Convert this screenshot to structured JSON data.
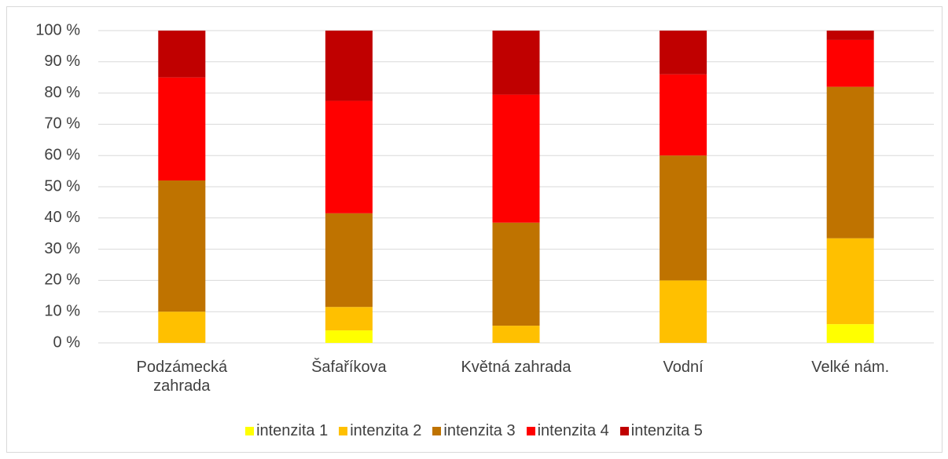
{
  "chart_data": {
    "type": "stacked_bar",
    "categories": [
      "Podzámecká zahrada",
      "Šafaříkova",
      "Květná zahrada",
      "Vodní",
      "Velké nám."
    ],
    "series": [
      {
        "name": "intenzita 1",
        "color": "#ffff00",
        "values": [
          0,
          4,
          0,
          0,
          6
        ]
      },
      {
        "name": "intenzita 2",
        "color": "#ffc000",
        "values": [
          10,
          7.5,
          5.5,
          20,
          27.5
        ]
      },
      {
        "name": "intenzita 3",
        "color": "#bf7300",
        "values": [
          42,
          30,
          33,
          40,
          48.5
        ]
      },
      {
        "name": "intenzita 4",
        "color": "#ff0000",
        "values": [
          33,
          36,
          41,
          26,
          15
        ]
      },
      {
        "name": "intenzita 5",
        "color": "#c00000",
        "values": [
          15,
          22.5,
          20.5,
          14,
          3
        ]
      }
    ],
    "ylim": [
      0,
      100
    ],
    "yticks": [
      {
        "value": 0,
        "label": "0 %"
      },
      {
        "value": 10,
        "label": "10 %"
      },
      {
        "value": 20,
        "label": "20 %"
      },
      {
        "value": 30,
        "label": "30 %"
      },
      {
        "value": 40,
        "label": "40 %"
      },
      {
        "value": 50,
        "label": "50 %"
      },
      {
        "value": 60,
        "label": "60 %"
      },
      {
        "value": 70,
        "label": "70 %"
      },
      {
        "value": 80,
        "label": "80 %"
      },
      {
        "value": 90,
        "label": "90 %"
      },
      {
        "value": 100,
        "label": "100 %"
      }
    ],
    "grid": true,
    "legend": "bottom"
  }
}
